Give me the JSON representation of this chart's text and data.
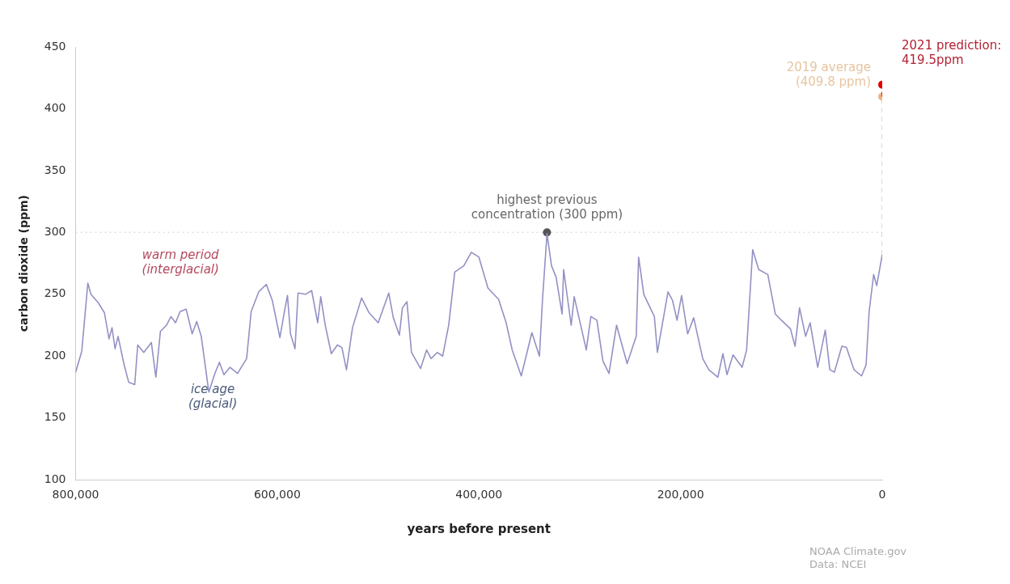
{
  "chart_data": {
    "type": "line",
    "xlabel": "years before present",
    "ylabel": "carbon dioxide (ppm)",
    "xlim": [
      800000,
      0
    ],
    "xticks": [
      {
        "value": 800000,
        "label": "800,000"
      },
      {
        "value": 600000,
        "label": "600,000"
      },
      {
        "value": 400000,
        "label": "400,000"
      },
      {
        "value": 200000,
        "label": "200,000"
      },
      0
    ],
    "ylim": [
      100,
      450
    ],
    "yticks": [
      100,
      150,
      200,
      250,
      300,
      350,
      400,
      450
    ],
    "legend": false,
    "series": [
      {
        "type": "line",
        "marker": "none",
        "color": "#9391c4",
        "x": [
          800000,
          793900,
          787900,
          784900,
          777400,
          771400,
          766900,
          763900,
          760900,
          757900,
          751900,
          747400,
          741400,
          738400,
          732400,
          724900,
          720400,
          715900,
          709900,
          705400,
          700900,
          696400,
          690400,
          684400,
          679900,
          675400,
          667900,
          661900,
          657400,
          652900,
          646900,
          639400,
          630400,
          625900,
          618400,
          610900,
          604900,
          597400,
          592900,
          589900,
          586900,
          582400,
          579400,
          571900,
          565900,
          559900,
          556900,
          552400,
          546400,
          540400,
          535900,
          531400,
          525400,
          516400,
          508900,
          499900,
          489400,
          484900,
          478900,
          475900,
          471400,
          466900,
          457900,
          451900,
          447400,
          441400,
          436000,
          430000,
          424000,
          415000,
          407500,
          400000,
          391000,
          380500,
          373000,
          367000,
          358000,
          347500,
          340000,
          337000,
          332500,
          328000,
          323500,
          317500,
          316000,
          308500,
          305500,
          293500,
          289000,
          283000,
          277000,
          271000,
          263500,
          253000,
          244000,
          241600,
          236500,
          226000,
          223000,
          212500,
          208000,
          203500,
          199000,
          193000,
          187000,
          178000,
          172000,
          163000,
          158000,
          154000,
          148000,
          139000,
          134500,
          128500,
          122500,
          113500,
          106000,
          100000,
          91000,
          86500,
          82000,
          76000,
          71500,
          64000,
          56500,
          52000,
          47500,
          40000,
          35500,
          28000,
          20500,
          16000,
          13000,
          8500,
          5500,
          0
        ],
        "values": [
          187,
          204,
          259,
          250,
          243,
          235,
          214,
          223,
          206,
          216,
          193,
          179,
          177,
          209,
          203,
          211,
          183,
          220,
          225,
          232,
          227,
          236,
          238,
          218,
          228,
          216,
          171,
          186,
          195,
          185,
          191,
          186,
          198,
          236,
          252,
          258,
          245,
          215,
          236,
          249,
          218,
          206,
          251,
          250,
          253,
          227,
          248,
          225,
          202,
          209,
          207,
          189,
          223,
          247,
          235,
          227,
          251,
          231,
          217,
          239,
          244,
          203,
          190,
          205,
          198,
          203,
          200,
          225,
          268,
          273,
          284,
          280,
          255,
          246,
          227,
          205,
          184,
          219,
          200,
          245,
          299,
          273,
          264,
          234,
          270,
          225,
          248,
          205,
          232,
          229,
          196,
          186,
          225,
          194,
          216,
          280,
          250,
          232,
          203,
          252,
          245,
          229,
          249,
          218,
          231,
          198,
          189,
          183,
          202,
          185,
          201,
          191,
          205,
          286,
          270,
          266,
          234,
          229,
          222,
          208,
          239,
          216,
          227,
          191,
          221,
          189,
          187,
          208,
          207,
          189,
          184,
          193,
          236,
          266,
          257,
          282
        ]
      },
      {
        "type": "line",
        "marker": "none",
        "line_style": "dashed",
        "color": "#f2c9a0",
        "x": [
          0,
          0
        ],
        "values": [
          282,
          409.8
        ]
      },
      {
        "type": "line",
        "marker": "none",
        "line_style": "dashed",
        "color": "#d0021b",
        "x": [
          0,
          0
        ],
        "values": [
          409.8,
          419.5
        ]
      },
      {
        "type": "scatter",
        "marker": "circle",
        "color": "#555555",
        "x": [
          332500
        ],
        "values": [
          300
        ]
      },
      {
        "type": "scatter",
        "marker": "circle",
        "color": "#f4b183",
        "x": [
          0
        ],
        "values": [
          409.8
        ]
      },
      {
        "type": "scatter",
        "marker": "circle",
        "color": "#e00000",
        "x": [
          0
        ],
        "values": [
          419.5
        ]
      }
    ],
    "ref_lines": [
      {
        "axis": "y",
        "value": 300,
        "color": "#dddddd",
        "line_style": "dotted"
      }
    ],
    "annotations": [
      "warm period\n(interglacial)",
      "ice age\n(glacial)",
      "highest previous\nconcentration (300 ppm)",
      "2019 average\n(409.8 ppm)",
      "2021 prediction:\n419.5ppm",
      "NOAA Climate.gov\nData: NCEI"
    ]
  }
}
